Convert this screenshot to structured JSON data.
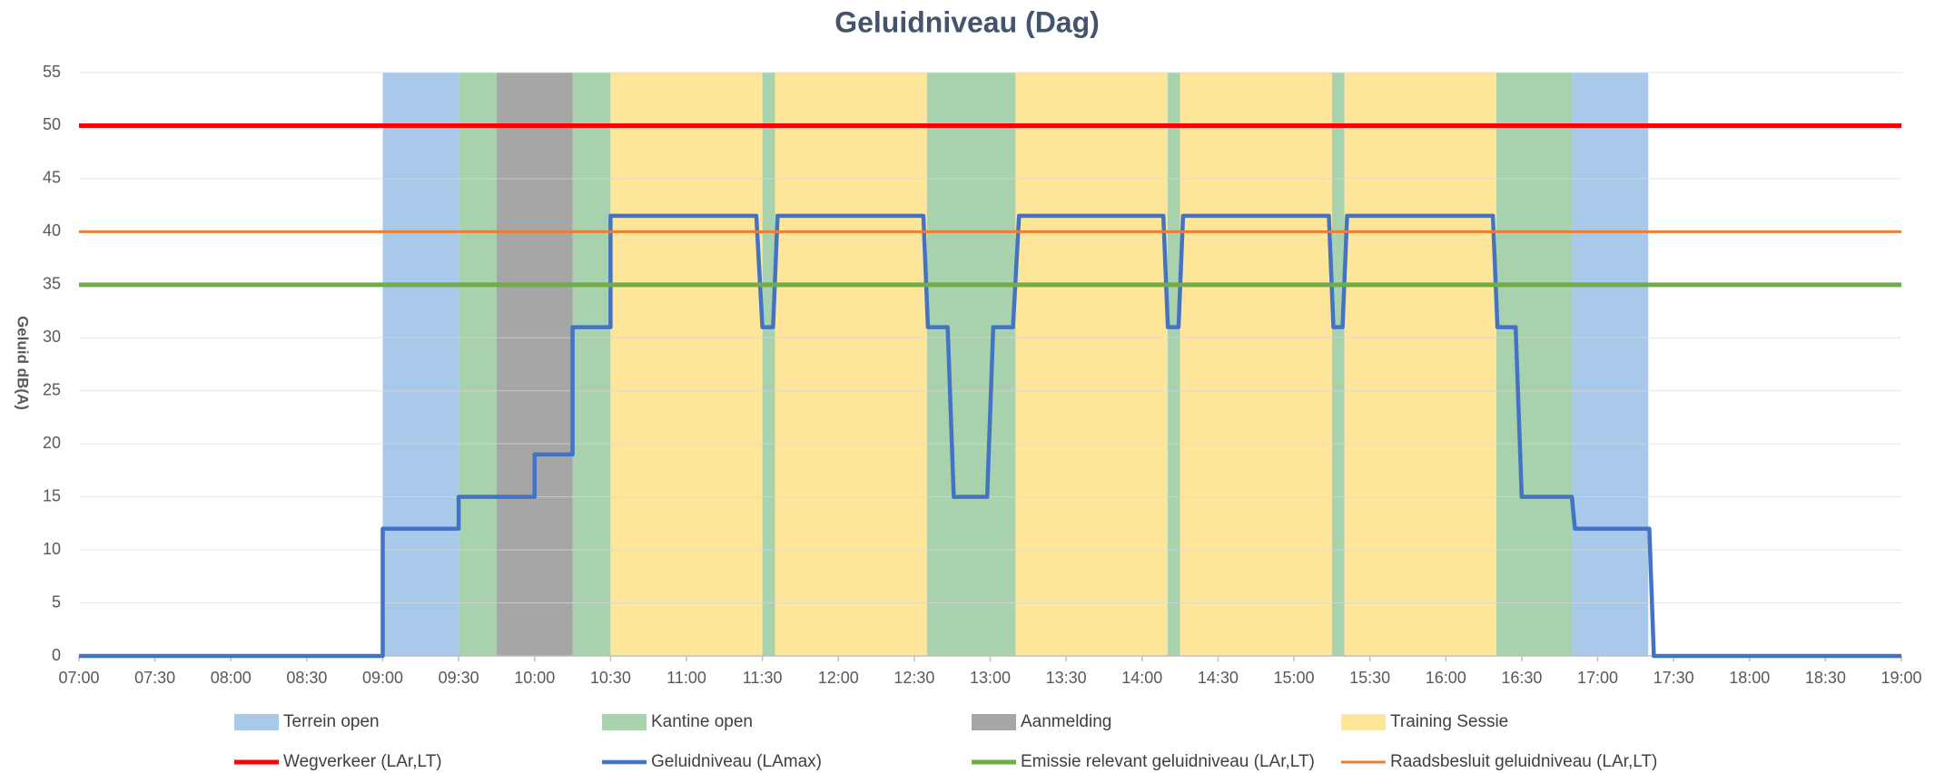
{
  "chart_data": {
    "type": "line",
    "title": "Geluidniveau (Dag)",
    "y_label": "Geluid dB(A)",
    "xlim": [
      7,
      19
    ],
    "ylim": [
      0,
      55
    ],
    "yticks": [
      0,
      5,
      10,
      15,
      20,
      25,
      30,
      35,
      40,
      45,
      50,
      55
    ],
    "xticks": [
      {
        "value": 7,
        "label": "07:00"
      },
      {
        "value": 7.5,
        "label": "07:30"
      },
      {
        "value": 8,
        "label": "08:00"
      },
      {
        "value": 8.5,
        "label": "08:30"
      },
      {
        "value": 9,
        "label": "09:00"
      },
      {
        "value": 9.5,
        "label": "09:30"
      },
      {
        "value": 10,
        "label": "10:00"
      },
      {
        "value": 10.5,
        "label": "10:30"
      },
      {
        "value": 11,
        "label": "11:00"
      },
      {
        "value": 11.5,
        "label": "11:30"
      },
      {
        "value": 12,
        "label": "12:00"
      },
      {
        "value": 12.5,
        "label": "12:30"
      },
      {
        "value": 13,
        "label": "13:00"
      },
      {
        "value": 13.5,
        "label": "13:30"
      },
      {
        "value": 14,
        "label": "14:00"
      },
      {
        "value": 14.5,
        "label": "14:30"
      },
      {
        "value": 15,
        "label": "15:00"
      },
      {
        "value": 15.5,
        "label": "15:30"
      },
      {
        "value": 16,
        "label": "16:00"
      },
      {
        "value": 16.5,
        "label": "16:30"
      },
      {
        "value": 17,
        "label": "17:00"
      },
      {
        "value": 17.5,
        "label": "17:30"
      },
      {
        "value": 18,
        "label": "18:00"
      },
      {
        "value": 18.5,
        "label": "18:30"
      },
      {
        "value": 19,
        "label": "19:00"
      }
    ],
    "grid": true,
    "legend": "bottom",
    "band_series": [
      {
        "name": "Terrein open",
        "color": "#a9c9ea",
        "level": 55,
        "intervals": [
          [
            9,
            9.5
          ],
          [
            16.833,
            17.333
          ]
        ]
      },
      {
        "name": "Kantine open",
        "color": "#a8d1ae",
        "level": 55,
        "intervals": [
          [
            9.5,
            9.75
          ],
          [
            10.25,
            10.5
          ],
          [
            11.5,
            11.583
          ],
          [
            12.583,
            13.167
          ],
          [
            14.167,
            14.25
          ],
          [
            15.25,
            15.333
          ],
          [
            16.333,
            16.833
          ]
        ]
      },
      {
        "name": "Aanmelding",
        "color": "#a6a6a6",
        "level": 55,
        "intervals": [
          [
            9.75,
            10.25
          ]
        ]
      },
      {
        "name": "Training Sessie",
        "color": "#fde59a",
        "level": 55,
        "intervals": [
          [
            10.5,
            11.5
          ],
          [
            11.583,
            12.583
          ],
          [
            13.167,
            14.167
          ],
          [
            14.25,
            15.25
          ],
          [
            15.333,
            16.333
          ]
        ]
      }
    ],
    "series": [
      {
        "name": "Wegverkeer (LAr,LT)",
        "color": "#ff0000",
        "x": [
          7,
          19
        ],
        "values": [
          50,
          50
        ]
      },
      {
        "name": "Geluidniveau  (LAmax)",
        "color": "#4472c4",
        "x": [
          7,
          9,
          9,
          9.5,
          9.5,
          10,
          10,
          10.25,
          10.25,
          10.5,
          10.5,
          11.46,
          11.5,
          11.57,
          11.6,
          12.56,
          12.59,
          12.72,
          12.76,
          12.98,
          13.02,
          13.15,
          13.19,
          14.14,
          14.17,
          14.24,
          14.27,
          15.23,
          15.26,
          15.32,
          15.35,
          16.31,
          16.34,
          16.46,
          16.5,
          16.83,
          16.85,
          17.34,
          17.37,
          19
        ],
        "values": [
          0,
          0,
          12,
          12,
          15,
          15,
          19,
          19,
          31,
          31,
          41.5,
          41.5,
          31,
          31,
          41.5,
          41.5,
          31,
          31,
          15,
          15,
          31,
          31,
          41.5,
          41.5,
          31,
          31,
          41.5,
          41.5,
          31,
          31,
          41.5,
          41.5,
          31,
          31,
          15,
          15,
          12,
          12,
          0,
          0
        ]
      },
      {
        "name": "Emissie relevant geluidniveau (LAr,LT)",
        "color": "#70ad47",
        "x": [
          7,
          19
        ],
        "values": [
          35,
          35
        ]
      },
      {
        "name": "Raadsbesluit geluidniveau (LAr,LT)",
        "color": "#ed7d31",
        "x": [
          7,
          19
        ],
        "values": [
          40,
          40
        ]
      }
    ]
  }
}
